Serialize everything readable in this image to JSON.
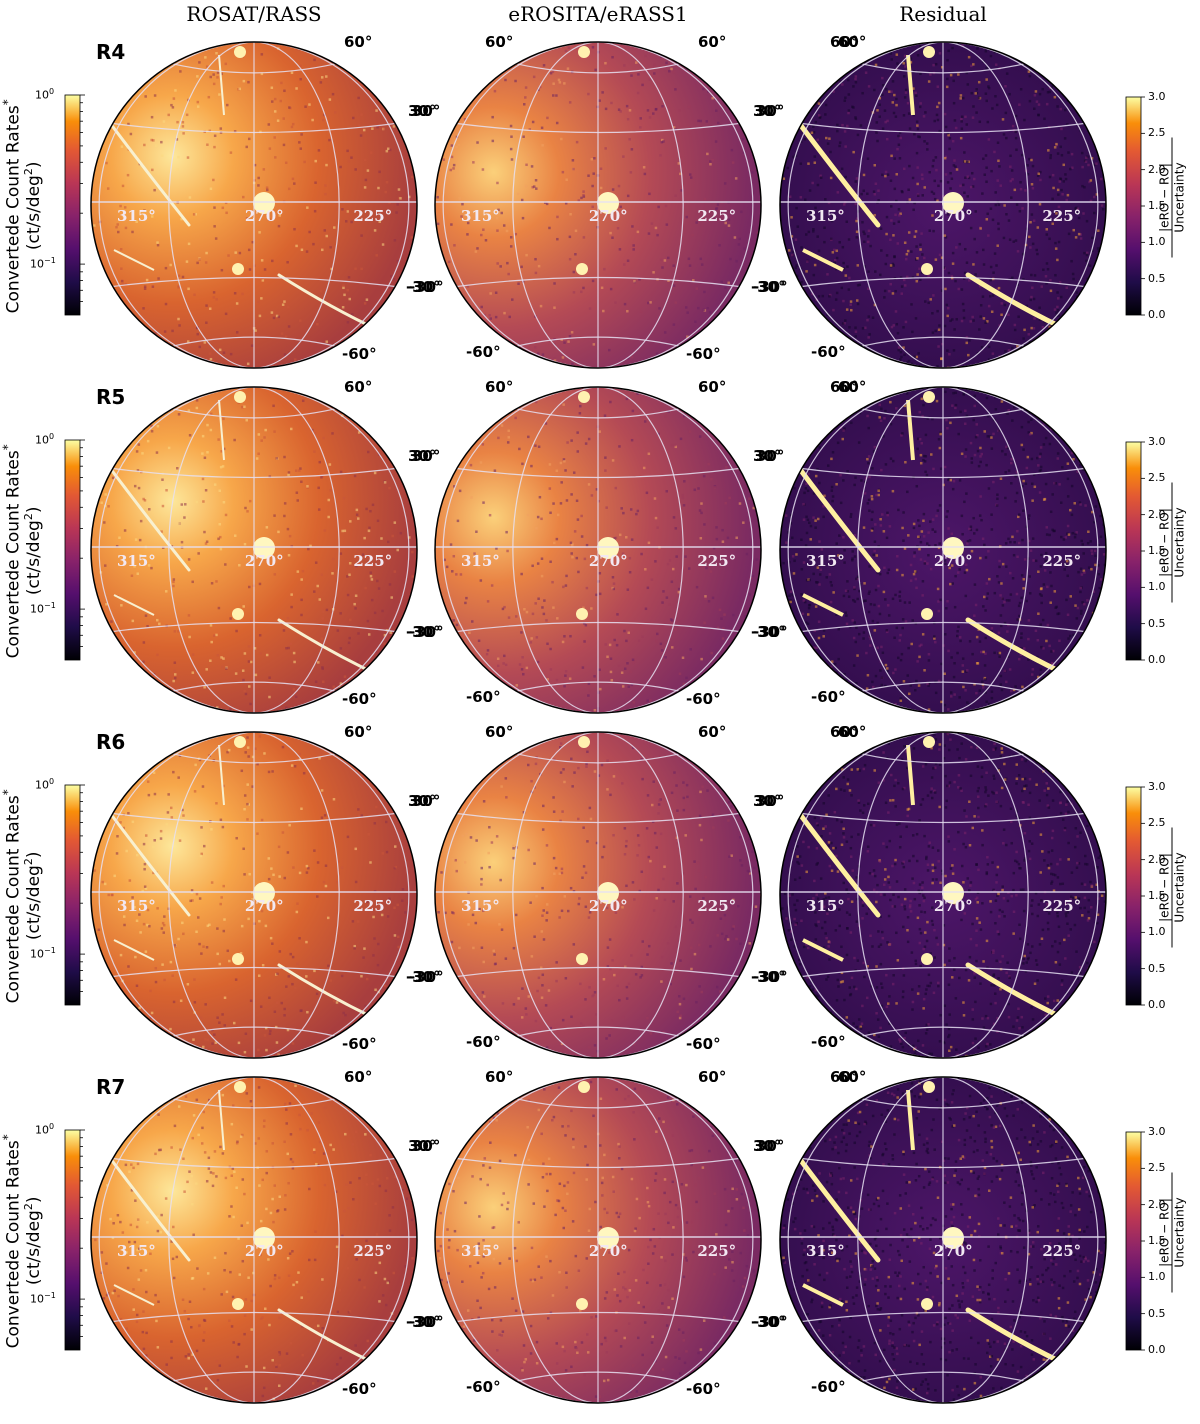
{
  "columns": [
    "ROSAT/RASS",
    "eROSITA/eRASS1",
    "Residual"
  ],
  "rows": [
    "R4",
    "R5",
    "R6",
    "R7"
  ],
  "longitude_labels": [
    "315°",
    "270°",
    "225°"
  ],
  "latitude_labels": {
    "n60": "60°",
    "n30": "30°",
    "s30": "-30°",
    "s60": "-60°"
  },
  "left_colorbar": {
    "title": "Convertede Count Rates",
    "title_superscript": "*",
    "units_prefix": "(ct/s/deg",
    "units_power": "2",
    "units_suffix": ")",
    "tick_top": "10",
    "tick_top_exp": "0",
    "tick_bottom": "10",
    "tick_bottom_exp": "−1",
    "scale": "log",
    "range": [
      0.05,
      1.0
    ],
    "colormap": "inferno"
  },
  "right_colorbar": {
    "ticks": [
      "3.0",
      "2.5",
      "2.0",
      "1.5",
      "1.0",
      "0.5",
      "0.0"
    ],
    "label_numerator": "|eRO − RO|",
    "label_denominator": "Uncertainty",
    "range": [
      0.0,
      3.0
    ],
    "colormap": "inferno"
  },
  "colors": {
    "rosat_base": "#e07a3a",
    "erosita_base": "#b84f5c",
    "residual_base": "#3b1058",
    "grid": "#e6e0f2"
  }
}
